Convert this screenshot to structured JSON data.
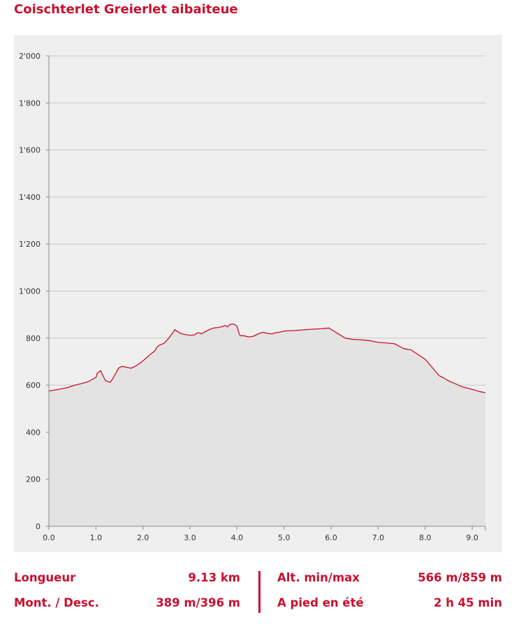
{
  "title": "Coischterlet Greierlet aibaiteue",
  "chart_data": {
    "type": "area",
    "xlabel": "",
    "ylabel": "",
    "xlim": [
      0,
      9.28
    ],
    "ylim": [
      0,
      2000
    ],
    "x_ticks": [
      0,
      1,
      2,
      3,
      4,
      5,
      6,
      7,
      8,
      9
    ],
    "x_tick_labels": [
      "0.0",
      "1.0",
      "2.0",
      "3.0",
      "4.0",
      "5.0",
      "6.0",
      "7.0",
      "8.0",
      "9.0"
    ],
    "y_ticks": [
      0,
      200,
      400,
      600,
      800,
      1000,
      1200,
      1400,
      1600,
      1800,
      2000
    ],
    "y_tick_labels": [
      "0",
      "200",
      "400",
      "600",
      "800",
      "1'000",
      "1'200",
      "1'400",
      "1'600",
      "1'800",
      "2'000"
    ],
    "grid": true,
    "line_color": "#c8102e",
    "fill_color": "#e3e3e3",
    "series": [
      {
        "x": [
          0.0,
          0.2,
          0.4,
          0.55,
          0.7,
          0.85,
          1.0,
          1.03,
          1.06,
          1.1,
          1.15,
          1.2,
          1.25,
          1.3,
          1.35,
          1.42,
          1.48,
          1.55,
          1.65,
          1.75,
          1.85,
          1.95,
          2.05,
          2.15,
          2.25,
          2.3,
          2.35,
          2.45,
          2.55,
          2.63,
          2.68,
          2.72,
          2.8,
          2.9,
          3.0,
          3.1,
          3.15,
          3.2,
          3.25,
          3.3,
          3.4,
          3.5,
          3.6,
          3.7,
          3.75,
          3.8,
          3.85,
          3.9,
          3.95,
          4.0,
          4.05,
          4.08,
          4.15,
          4.25,
          4.35,
          4.45,
          4.55,
          4.65,
          4.75,
          4.8,
          4.9,
          5.0,
          5.2,
          5.4,
          5.6,
          5.8,
          5.95,
          6.1,
          6.3,
          6.45,
          6.6,
          6.8,
          7.0,
          7.15,
          7.35,
          7.45,
          7.55,
          7.7,
          7.85,
          8.0,
          8.15,
          8.3,
          8.4,
          8.5,
          8.65,
          8.8,
          9.0,
          9.15,
          9.28
        ],
        "y": [
          575,
          582,
          590,
          600,
          607,
          616,
          633,
          652,
          655,
          662,
          640,
          620,
          615,
          612,
          625,
          650,
          672,
          680,
          676,
          672,
          682,
          695,
          712,
          730,
          745,
          762,
          770,
          778,
          800,
          822,
          836,
          830,
          820,
          815,
          812,
          814,
          822,
          822,
          818,
          825,
          835,
          843,
          845,
          850,
          854,
          848,
          858,
          860,
          858,
          850,
          815,
          810,
          810,
          805,
          808,
          818,
          825,
          820,
          818,
          822,
          825,
          830,
          832,
          835,
          838,
          840,
          843,
          825,
          800,
          795,
          793,
          790,
          782,
          780,
          776,
          765,
          755,
          750,
          730,
          710,
          675,
          640,
          630,
          618,
          605,
          592,
          582,
          573,
          568
        ]
      }
    ]
  },
  "stats": {
    "left": [
      {
        "label": "Longueur",
        "value": "9.13 km"
      },
      {
        "label": "Mont. / Desc.",
        "value": "389 m/396 m"
      }
    ],
    "right": [
      {
        "label": "Alt. min/max",
        "value": "566 m/859 m"
      },
      {
        "label": "A pied en été",
        "value": "2 h 45 min"
      }
    ]
  }
}
